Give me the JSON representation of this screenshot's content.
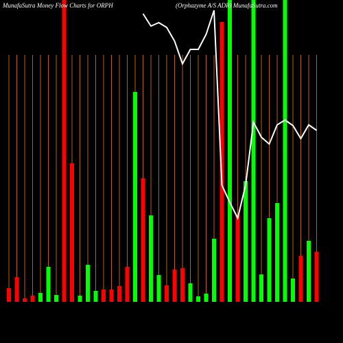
{
  "chart_data": {
    "type": "bar",
    "title": "MunafaSutra  Money Flow  Charts for ORPH",
    "subtitle": "(Orphazyme A/S ADR)  MunafaSutra.com",
    "categories": [
      null,
      null,
      null,
      null,
      null,
      null,
      null,
      null,
      null,
      null,
      null,
      null,
      null,
      null,
      null,
      null,
      null,
      null,
      null,
      null,
      null,
      null,
      null,
      null,
      null,
      null,
      null,
      null,
      null,
      null,
      null,
      null,
      null,
      null,
      null,
      null,
      null,
      null,
      null,
      null
    ],
    "values": [
      20,
      36,
      5,
      9,
      13,
      51,
      10,
      440,
      202,
      9,
      54,
      16,
      18,
      18,
      23,
      51,
      306,
      180,
      126,
      39,
      24,
      47,
      49,
      27,
      8,
      12,
      92,
      408,
      440,
      128,
      176,
      440,
      40,
      122,
      144,
      440,
      34,
      67,
      89,
      73
    ],
    "colors": [
      "#ff0000",
      "#ff0000",
      "#ff0000",
      "#ff0000",
      "#00ff00",
      "#00ff00",
      "#00ff00",
      "#ff0000",
      "#ff0000",
      "#00ff00",
      "#00ff00",
      "#00ff00",
      "#ff0000",
      "#ff0000",
      "#ff0000",
      "#ff0000",
      "#00ff00",
      "#ff0000",
      "#00ff00",
      "#00ff00",
      "#ff0000",
      "#ff0000",
      "#ff0000",
      "#00ff00",
      "#00ff00",
      "#00ff00",
      "#00ff00",
      "#ff0000",
      "#00ff00",
      "#ff0000",
      "#00ff00",
      "#00ff00",
      "#00ff00",
      "#00ff00",
      "#00ff00",
      "#00ff00",
      "#00ff00",
      "#ff0000",
      "#00ff00",
      "#ff0000"
    ],
    "line": {
      "color": "#ffffff",
      "values": [
        null,
        null,
        null,
        null,
        null,
        null,
        null,
        null,
        null,
        null,
        null,
        null,
        null,
        null,
        null,
        null,
        null,
        420,
        402,
        407,
        400,
        380,
        347,
        368,
        368,
        390,
        425,
        170,
        145,
        122,
        170,
        262,
        240,
        230,
        258,
        265,
        257,
        238,
        258,
        250
      ]
    },
    "gridline_color": "#b8650a",
    "ylim": [
      0,
      440
    ]
  }
}
